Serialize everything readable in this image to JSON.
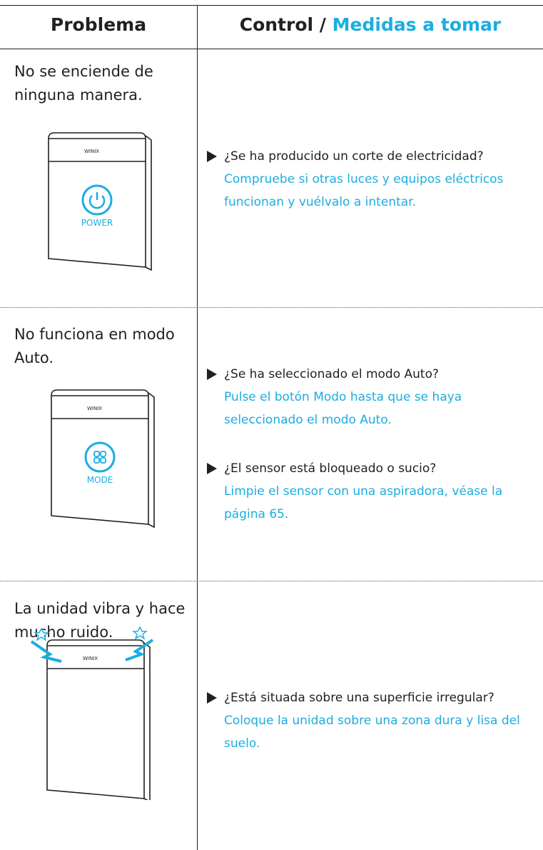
{
  "header": {
    "col1": "Problema",
    "col2_prefix": "Control /",
    "col2_highlight": "Medidas a tomar"
  },
  "brand": "WINIX",
  "rows": [
    {
      "problem": [
        "No se enciende de",
        "ninguna manera."
      ],
      "button": "POWER",
      "checks": [
        {
          "question": "¿Se ha producido un corte de electricidad?",
          "action": [
            "Compruebe si otras luces y equipos eléctricos",
            "funcionan y vuélvalo a intentar."
          ]
        }
      ]
    },
    {
      "problem": [
        "No funciona en modo",
        "Auto."
      ],
      "button": "MODE",
      "checks": [
        {
          "question": "¿Se ha seleccionado el modo Auto?",
          "action": [
            "Pulse el botón Modo hasta que se haya",
            "seleccionado el modo Auto."
          ]
        },
        {
          "question": "¿El sensor está bloqueado o sucio?",
          "action": [
            "Limpie el sensor con una aspiradora, véase la",
            "página 65."
          ]
        }
      ]
    },
    {
      "problem": [
        "La unidad vibra y hace",
        "mucho ruido."
      ],
      "checks": [
        {
          "question": "¿Está situada sobre una superficie irregular?",
          "action": [
            "Coloque la unidad sobre una zona dura y lisa del",
            "suelo."
          ]
        }
      ]
    }
  ]
}
